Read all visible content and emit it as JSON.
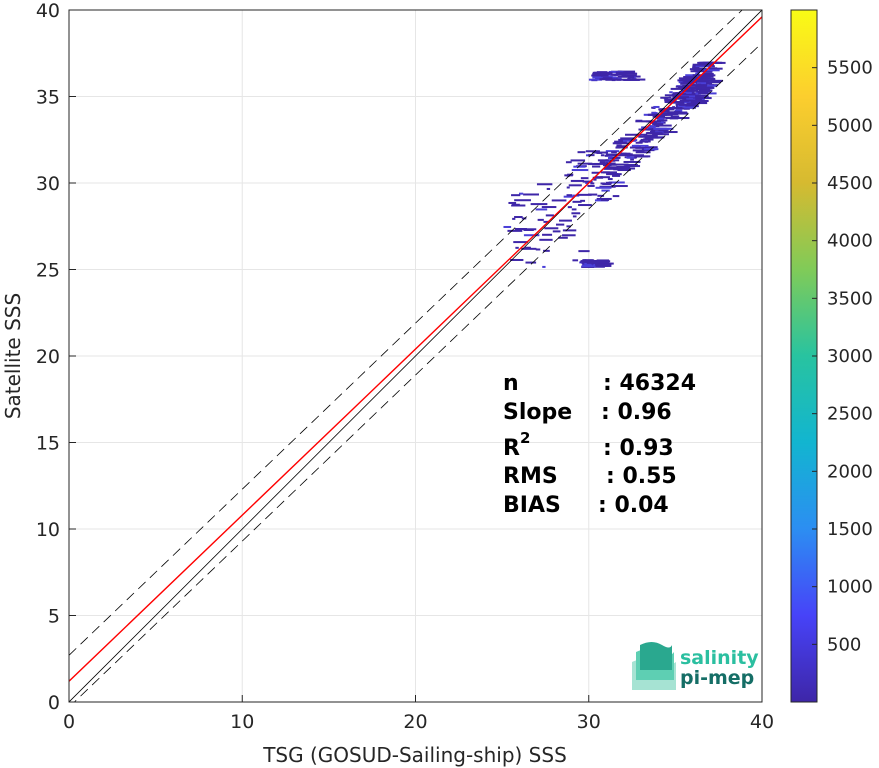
{
  "chart_data": {
    "type": "scatter",
    "subtype": "density-scatter",
    "xlabel": "TSG (GOSUD-Sailing-ship) SSS",
    "ylabel": "Satellite SSS",
    "xlim": [
      0,
      40
    ],
    "ylim": [
      0,
      40
    ],
    "xticks": [
      0,
      10,
      20,
      30,
      40
    ],
    "yticks": [
      0,
      5,
      10,
      15,
      20,
      25,
      30,
      35,
      40
    ],
    "grid": true,
    "colorbar": {
      "range": [
        0,
        6000
      ],
      "ticks": [
        500,
        1000,
        1500,
        2000,
        2500,
        3000,
        3500,
        4000,
        4500,
        5000,
        5500
      ],
      "colormap": [
        "#3e26a8",
        "#4743f8",
        "#2c8ef2",
        "#12b5d0",
        "#28c3a0",
        "#80cb58",
        "#d6ba30",
        "#fcce2e",
        "#f9fb15"
      ]
    },
    "reference_lines": [
      {
        "name": "1:1",
        "slope": 1,
        "intercept": 0,
        "style": "solid",
        "color": "#000000"
      },
      {
        "name": "upper",
        "slope": 0.96,
        "intercept": 2.7,
        "style": "dashed",
        "color": "#000000"
      },
      {
        "name": "lower",
        "slope": 0.96,
        "intercept": -0.3,
        "style": "dashed",
        "color": "#000000"
      },
      {
        "name": "fit",
        "slope": 0.96,
        "intercept": 1.2,
        "style": "solid",
        "color": "#ff0000"
      }
    ],
    "clusters": [
      {
        "x": [
          35,
          37
        ],
        "y": [
          34.5,
          37
        ],
        "density": "high"
      },
      {
        "x": [
          33.5,
          36.5
        ],
        "y": [
          33,
          36
        ],
        "density": "medium"
      },
      {
        "x": [
          30.5,
          34
        ],
        "y": [
          30,
          34
        ],
        "density": "medium"
      },
      {
        "x": [
          28.5,
          31.5
        ],
        "y": [
          29,
          32
        ],
        "density": "low"
      },
      {
        "x": [
          25,
          29.5
        ],
        "y": [
          25,
          30
        ],
        "density": "low"
      },
      {
        "x": [
          30,
          32.5
        ],
        "y": [
          36,
          36.5
        ],
        "density": "low"
      },
      {
        "x": [
          29.5,
          30.5
        ],
        "y": [
          25.2,
          25.6
        ],
        "density": "low"
      }
    ],
    "stats": {
      "n_label": "n",
      "n_value": ": 46324",
      "slope_label": "Slope",
      "slope_value": ": 0.96",
      "r2_label": "R",
      "r2_sup": "2",
      "r2_value": ": 0.93",
      "rms_label": "RMS",
      "rms_value": ": 0.55",
      "bias_label": "BIAS",
      "bias_value": ": 0.04"
    }
  },
  "logo": {
    "line1": "salinity",
    "line2": "pi-mep"
  }
}
